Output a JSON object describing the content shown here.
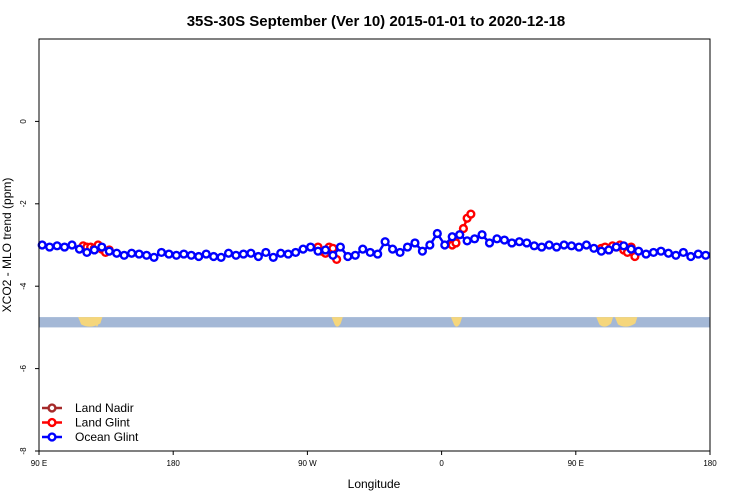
{
  "chart_data": {
    "type": "line",
    "title": "35S-30S September (Ver 10)   2015-01-01 to 2020-12-18",
    "xlabel": "Longitude",
    "ylabel": "XCO2 - MLO trend (ppm)",
    "xlim": [
      90,
      450
    ],
    "ylim": [
      -8,
      2
    ],
    "x_ticks": [
      90,
      162,
      234,
      306,
      378,
      450
    ],
    "x_tick_labels": [
      "90 E",
      "180",
      "90 W",
      "0",
      "90 E",
      "180"
    ],
    "y_ticks": [
      0,
      -2,
      -4,
      -6,
      -8
    ],
    "y_tick_labels": [
      "0",
      "-2",
      "-4",
      "-6",
      "-8"
    ],
    "grid": false,
    "legend_position": "bottom-left",
    "colors": {
      "land_nadir": "#a52a2a",
      "land_glint": "#ff0000",
      "ocean_glint": "#0000ff",
      "ocean_band": "#a4b8d6",
      "land_band": "#f5d67c"
    },
    "surface_band": {
      "y_range": [
        -5.0,
        -4.75
      ],
      "land_segments": [
        [
          111,
          124
        ],
        [
          119,
          123
        ],
        [
          247,
          253
        ],
        [
          311,
          317
        ],
        [
          389,
          398
        ],
        [
          399,
          411
        ]
      ]
    },
    "series": [
      {
        "name": "Land Nadir",
        "x": [],
        "y": []
      },
      {
        "name": "Land Glint",
        "x": [
          113.7,
          115.7,
          117.7,
          119.7,
          121.7,
          123.7,
          125.7,
          127.7,
          239.7,
          241.7,
          243.7,
          245.7,
          247.7,
          249.7,
          311.7,
          313.7,
          315.7,
          317.7,
          319.7,
          321.7,
          391.7,
          393.7,
          395.7,
          397.7,
          399.7,
          401.7,
          403.7,
          405.7,
          407.7,
          409.7
        ],
        "y": [
          -3.02,
          -3.05,
          -3.05,
          -3.08,
          -3.0,
          -3.1,
          -3.18,
          -3.12,
          -3.05,
          -3.15,
          -3.2,
          -3.05,
          -3.08,
          -3.35,
          -3.0,
          -2.95,
          -2.75,
          -2.6,
          -2.35,
          -2.25,
          -3.08,
          -3.05,
          -3.12,
          -3.02,
          -3.05,
          -3.0,
          -3.12,
          -3.18,
          -3.05,
          -3.28
        ]
      },
      {
        "name": "Ocean Glint",
        "x": [
          91.7,
          95.7,
          99.7,
          103.7,
          107.7,
          111.7,
          115.7,
          119.7,
          123.7,
          127.7,
          131.7,
          135.7,
          139.7,
          143.7,
          147.7,
          151.7,
          155.7,
          159.7,
          163.7,
          167.7,
          171.7,
          175.7,
          179.7,
          183.7,
          187.7,
          191.7,
          195.7,
          199.7,
          203.7,
          207.7,
          211.7,
          215.7,
          219.7,
          223.7,
          227.7,
          231.7,
          235.7,
          239.7,
          243.7,
          247.7,
          251.7,
          255.7,
          259.7,
          263.7,
          267.7,
          271.7,
          275.7,
          279.7,
          283.7,
          287.7,
          291.7,
          295.7,
          299.7,
          303.7,
          307.7,
          311.7,
          315.7,
          319.7,
          323.7,
          327.7,
          331.7,
          335.7,
          339.7,
          343.7,
          347.7,
          351.7,
          355.7,
          359.7,
          363.7,
          367.7,
          371.7,
          375.7,
          379.7,
          383.7,
          387.7,
          391.7,
          395.7,
          399.7,
          403.7,
          407.7,
          411.7,
          415.7,
          419.7,
          423.7,
          427.7,
          431.7,
          435.7,
          439.7,
          443.7,
          447.7
        ],
        "y": [
          -3.0,
          -3.05,
          -3.02,
          -3.05,
          -3.0,
          -3.1,
          -3.18,
          -3.12,
          -3.05,
          -3.15,
          -3.2,
          -3.25,
          -3.2,
          -3.22,
          -3.25,
          -3.3,
          -3.18,
          -3.22,
          -3.25,
          -3.22,
          -3.25,
          -3.28,
          -3.22,
          -3.28,
          -3.3,
          -3.2,
          -3.25,
          -3.22,
          -3.2,
          -3.28,
          -3.18,
          -3.3,
          -3.2,
          -3.22,
          -3.18,
          -3.1,
          -3.05,
          -3.15,
          -3.12,
          -3.25,
          -3.05,
          -3.28,
          -3.25,
          -3.1,
          -3.18,
          -3.22,
          -2.92,
          -3.1,
          -3.18,
          -3.05,
          -2.95,
          -3.15,
          -3.0,
          -2.72,
          -3.0,
          -2.8,
          -2.75,
          -2.9,
          -2.85,
          -2.75,
          -2.95,
          -2.85,
          -2.88,
          -2.95,
          -2.92,
          -2.95,
          -3.02,
          -3.05,
          -3.0,
          -3.05,
          -3.0,
          -3.02,
          -3.05,
          -3.0,
          -3.08,
          -3.15,
          -3.12,
          -3.05,
          -3.02,
          -3.1,
          -3.15,
          -3.22,
          -3.18,
          -3.15,
          -3.2,
          -3.25,
          -3.18,
          -3.28,
          -3.22,
          -3.25
        ]
      }
    ]
  }
}
